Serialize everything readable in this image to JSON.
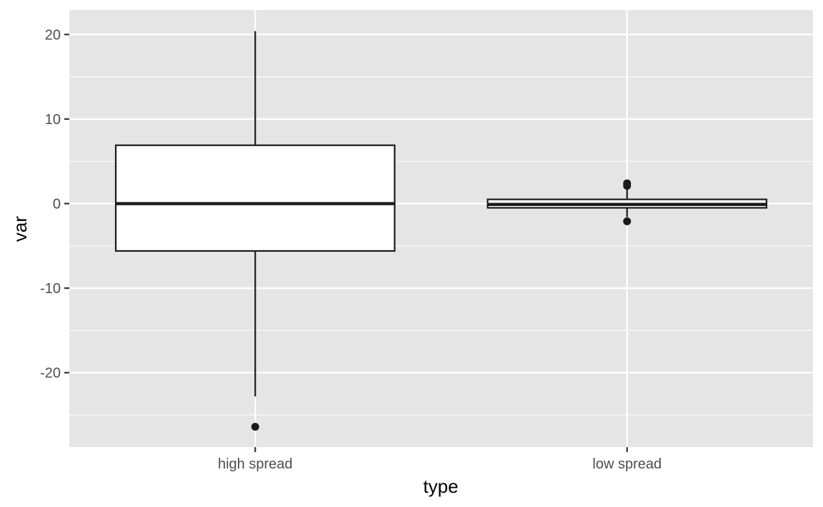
{
  "chart_data": {
    "type": "boxplot",
    "title": "",
    "xlabel": "type",
    "ylabel": "var",
    "ylim": [
      -28.8,
      22.9
    ],
    "y_ticks": [
      -20,
      -10,
      0,
      10,
      20
    ],
    "y_tick_labels": [
      "-20",
      "-10",
      "0",
      "10",
      "20"
    ],
    "y_minor_ticks": [
      -25,
      -15,
      -5,
      5,
      15
    ],
    "grid": true,
    "legend": "none",
    "categories": [
      "high spread",
      "low spread"
    ],
    "boxes": [
      {
        "category": "high spread",
        "q1": -5.6,
        "median": 0.0,
        "q3": 6.9,
        "whisker_low": -22.8,
        "whisker_high": 20.4,
        "outliers": [
          -26.4
        ]
      },
      {
        "category": "low spread",
        "q1": -0.5,
        "median": -0.1,
        "q3": 0.5,
        "whisker_low": -1.6,
        "whisker_high": 1.8,
        "outliers": [
          2.1,
          2.4,
          -2.1
        ]
      }
    ],
    "colors": {
      "panel": "#e5e5e5",
      "grid": "#ffffff",
      "box_fill": "#ffffff",
      "box_line": "#1a1a1a",
      "outlier": "#1a1a1a"
    }
  }
}
